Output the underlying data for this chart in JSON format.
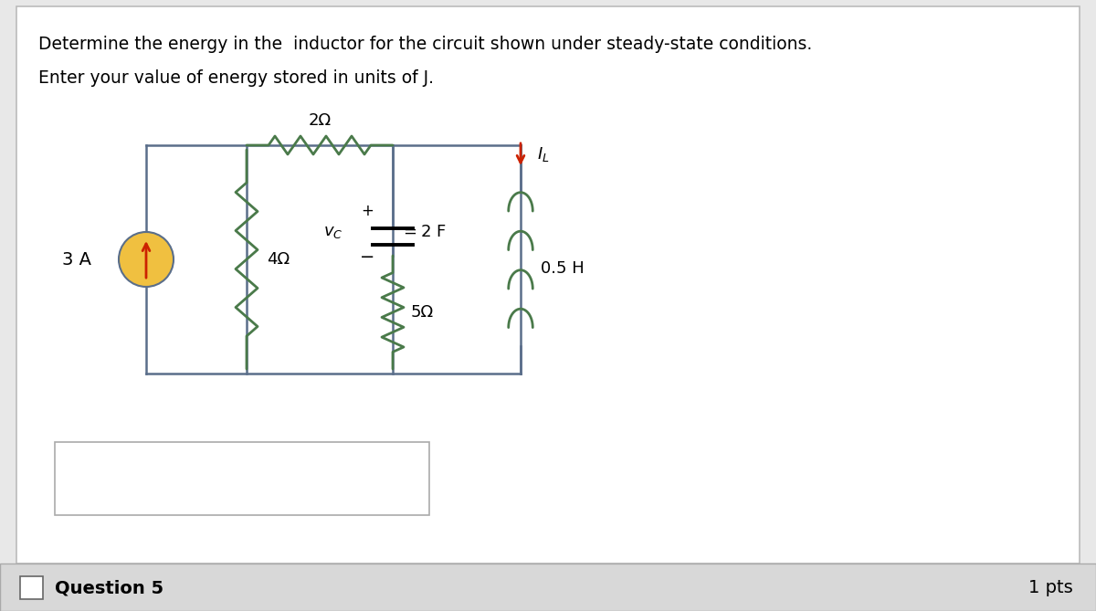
{
  "title_line1": "Determine the energy in the  inductor for the circuit shown under steady-state conditions.",
  "title_line2": "Enter your value of energy stored in units of J.",
  "question_label": "Question 5",
  "pts_label": "1 pts",
  "bg_color": "#e8e8e8",
  "card_bg": "#ffffff",
  "wire_color": "#5a6e8a",
  "resistor_color": "#4a7a4a",
  "inductor_color": "#4a7a4a",
  "current_source_fill": "#f0c040",
  "current_source_arrow": "#cc2200",
  "iL_arrow_color": "#cc2200",
  "bottom_bar_bg": "#d8d8d8",
  "bottom_bar_border": "#aaaaaa",
  "resistor_2ohm_label": "2Ω",
  "resistor_4ohm_label": "4Ω",
  "resistor_5ohm_label": "5Ω",
  "capacitor_label": "2 F",
  "vc_label": "v₁ᴄ",
  "inductor_label": "0.5 H",
  "current_label": "3 A",
  "iL_label": "Iₗ"
}
